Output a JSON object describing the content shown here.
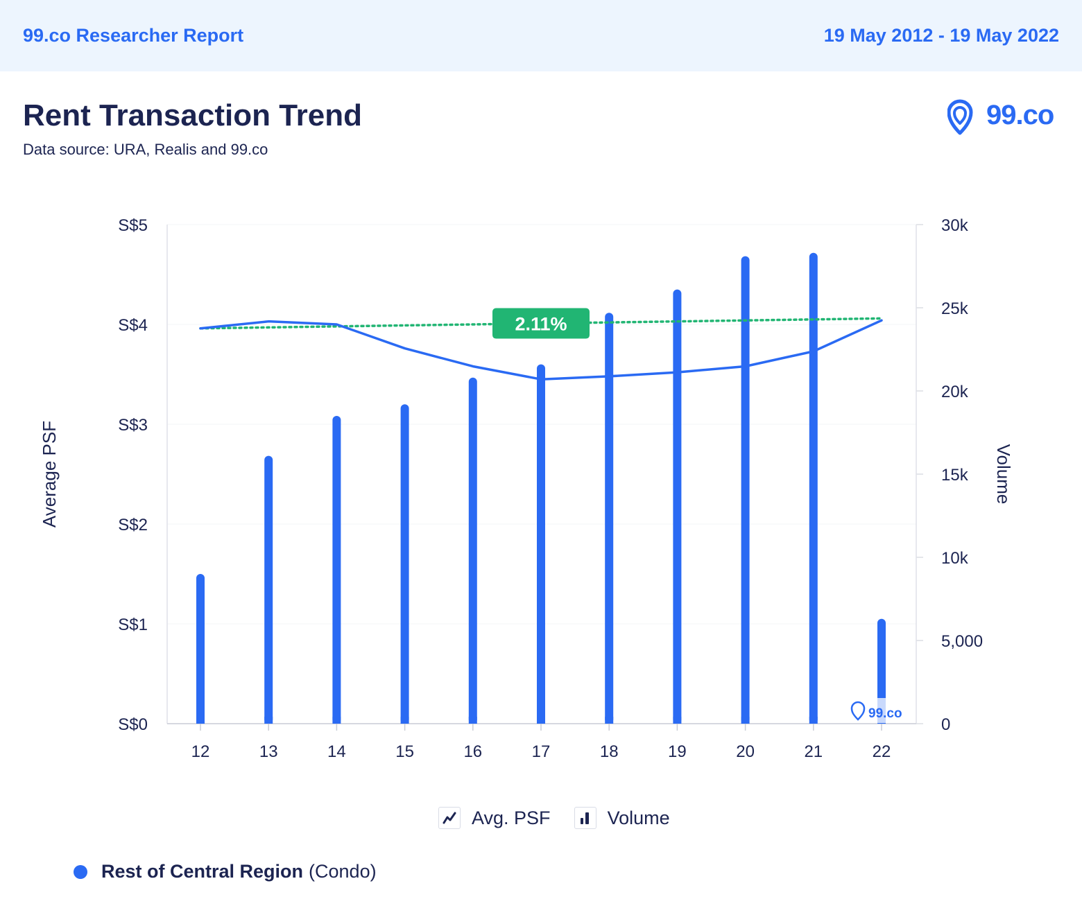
{
  "header": {
    "brand": "99.co Researcher Report",
    "date_range": "19 May 2012 - 19 May 2022"
  },
  "page": {
    "title": "Rent Transaction Trend",
    "subtitle": "Data source: URA, Realis and 99.co",
    "logo_text": "99.co",
    "logo_icon": "location-pin-icon",
    "watermark_text": "99.co"
  },
  "colors": {
    "accent": "#2a6af3",
    "trend": "#21b573",
    "text": "#1c2451"
  },
  "chart_data": {
    "type": "bar",
    "title": "Rent Transaction Trend",
    "categories": [
      "12",
      "13",
      "14",
      "15",
      "16",
      "17",
      "18",
      "19",
      "20",
      "21",
      "22"
    ],
    "ylabel_left": "Average PSF",
    "ylabel_right": "Volume",
    "y_left_ticks": [
      "S$0",
      "S$1",
      "S$2",
      "S$3",
      "S$4",
      "S$5"
    ],
    "y_right_ticks": [
      "0",
      "5,000",
      "10k",
      "15k",
      "20k",
      "25k",
      "30k"
    ],
    "ylim_left": [
      0,
      5
    ],
    "ylim_right": [
      0,
      30000
    ],
    "series": [
      {
        "name": "Volume",
        "type": "bar",
        "axis": "right",
        "values": [
          9000,
          16100,
          18500,
          19200,
          20800,
          21600,
          24700,
          26100,
          28100,
          28300,
          6300
        ]
      },
      {
        "name": "Avg. PSF",
        "type": "line",
        "axis": "left",
        "values": [
          3.96,
          4.03,
          4.0,
          3.76,
          3.58,
          3.45,
          3.48,
          3.52,
          3.58,
          3.73,
          4.04
        ]
      }
    ],
    "trendline": {
      "start": 3.96,
      "end": 4.06,
      "label": "2.11%"
    },
    "legend": [
      {
        "label": "Avg. PSF",
        "icon": "line-chart-icon"
      },
      {
        "label": "Volume",
        "icon": "bar-chart-icon"
      }
    ],
    "legend_position": "bottom-center",
    "grid": true
  },
  "region": {
    "name": "Rest of Central Region",
    "type": "(Condo)"
  }
}
